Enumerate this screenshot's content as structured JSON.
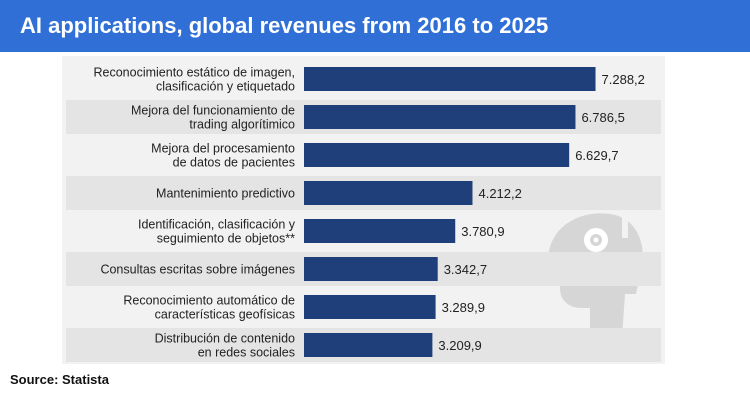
{
  "header": {
    "title": "AI applications, global revenues from 2016 to 2025"
  },
  "footer": {
    "source": "Source: Statista"
  },
  "colors": {
    "header_bg": "#2f6fd6",
    "bar": "#1f3f7a",
    "row_band": "#e4e4e4",
    "panel_bg": "#f2f2f2",
    "icon": "#d6d6d6"
  },
  "chart_data": {
    "type": "bar",
    "orientation": "horizontal",
    "title": "AI applications, global revenues from 2016 to 2025",
    "xlabel": "",
    "ylabel": "",
    "grid": false,
    "xlim": [
      0,
      7700
    ],
    "categories": [
      [
        "Reconocimiento estático de imagen,",
        "clasificación y etiquetado"
      ],
      [
        "Mejora del funcionamiento de",
        "trading algorítimico"
      ],
      [
        "Mejora del procesamiento",
        "de datos de pacientes"
      ],
      [
        "Mantenimiento predictivo"
      ],
      [
        "Identificación, clasificación y",
        "seguimiento de objetos**"
      ],
      [
        "Consultas escritas sobre imágenes"
      ],
      [
        "Reconocimiento automático de",
        "características geofísicas"
      ],
      [
        "Distribución de contenido",
        "en redes sociales"
      ]
    ],
    "values": [
      7288.2,
      6786.5,
      6629.7,
      4212.2,
      3780.9,
      3342.7,
      3289.9,
      3209.9
    ],
    "value_labels": [
      "7.288,2",
      "6.786,5",
      "6.629,7",
      "4.212,2",
      "3.780,9",
      "3.342,7",
      "3.289,9",
      "3.209,9"
    ]
  }
}
